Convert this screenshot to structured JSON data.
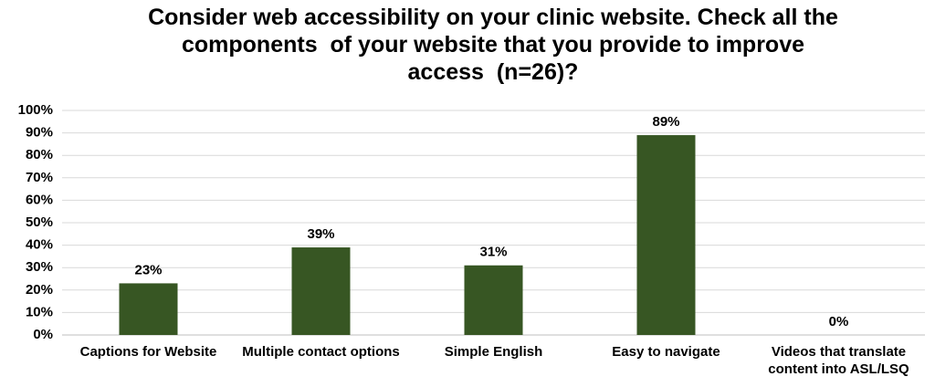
{
  "chart_data": {
    "type": "bar",
    "title": "Consider web accessibility on your clinic website. Check all the components  of your website that you provide to improve access  (n=26)?",
    "categories": [
      "Captions for Website",
      "Multiple contact options",
      "Simple English",
      "Easy to navigate",
      "Videos that translate content into ASL/LSQ"
    ],
    "values": [
      23,
      39,
      31,
      89,
      0
    ],
    "value_labels": [
      "23%",
      "39%",
      "31%",
      "89%",
      "0%"
    ],
    "color": "#375623",
    "ylim": [
      0,
      100
    ],
    "yticks": [
      {
        "value": 0,
        "label": "0%"
      },
      {
        "value": 10,
        "label": "10%"
      },
      {
        "value": 20,
        "label": "20%"
      },
      {
        "value": 30,
        "label": "30%"
      },
      {
        "value": 40,
        "label": "40%"
      },
      {
        "value": 50,
        "label": "50%"
      },
      {
        "value": 60,
        "label": "60%"
      },
      {
        "value": 70,
        "label": "70%"
      },
      {
        "value": 80,
        "label": "80%"
      },
      {
        "value": 90,
        "label": "90%"
      },
      {
        "value": 100,
        "label": "100%"
      }
    ],
    "grid": true
  }
}
